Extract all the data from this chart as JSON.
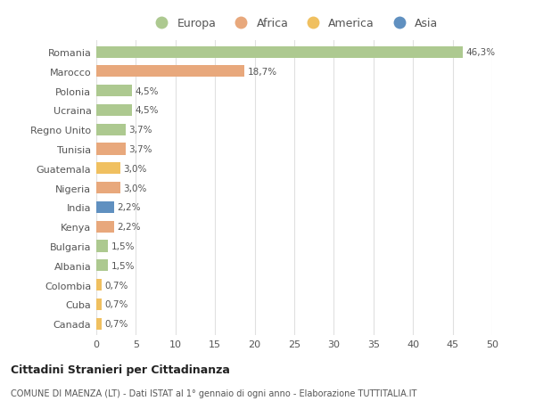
{
  "categories": [
    "Romania",
    "Marocco",
    "Polonia",
    "Ucraina",
    "Regno Unito",
    "Tunisia",
    "Guatemala",
    "Nigeria",
    "India",
    "Kenya",
    "Bulgaria",
    "Albania",
    "Colombia",
    "Cuba",
    "Canada"
  ],
  "values": [
    46.3,
    18.7,
    4.5,
    4.5,
    3.7,
    3.7,
    3.0,
    3.0,
    2.2,
    2.2,
    1.5,
    1.5,
    0.7,
    0.7,
    0.7
  ],
  "labels": [
    "46,3%",
    "18,7%",
    "4,5%",
    "4,5%",
    "3,7%",
    "3,7%",
    "3,0%",
    "3,0%",
    "2,2%",
    "2,2%",
    "1,5%",
    "1,5%",
    "0,7%",
    "0,7%",
    "0,7%"
  ],
  "continents": [
    "Europa",
    "Africa",
    "Europa",
    "Europa",
    "Europa",
    "Africa",
    "America",
    "Africa",
    "Asia",
    "Africa",
    "Europa",
    "Europa",
    "America",
    "America",
    "America"
  ],
  "colors": {
    "Europa": "#adc990",
    "Africa": "#e8a87c",
    "America": "#f0c060",
    "Asia": "#6090c0"
  },
  "xlim": [
    0,
    50
  ],
  "xticks": [
    0,
    5,
    10,
    15,
    20,
    25,
    30,
    35,
    40,
    45,
    50
  ],
  "title": "Cittadini Stranieri per Cittadinanza",
  "subtitle": "COMUNE DI MAENZA (LT) - Dati ISTAT al 1° gennaio di ogni anno - Elaborazione TUTTITALIA.IT",
  "background_color": "#ffffff",
  "grid_color": "#e0e0e0",
  "bar_height": 0.6,
  "figsize": [
    6.0,
    4.6
  ],
  "dpi": 100
}
